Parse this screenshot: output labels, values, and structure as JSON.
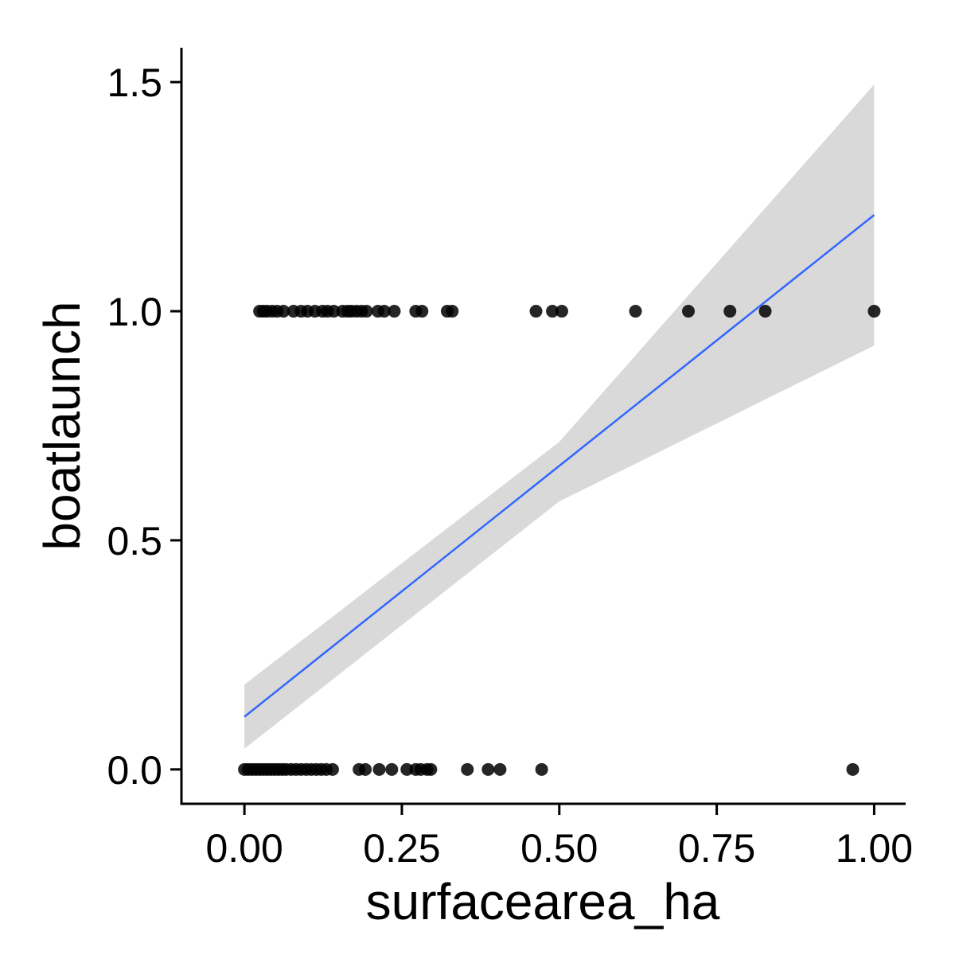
{
  "chart_data": {
    "type": "scatter",
    "title": "",
    "xlabel": "surfacearea_ha",
    "ylabel": "boatlaunch",
    "xlim": [
      -0.1,
      1.05
    ],
    "ylim": [
      -0.075,
      1.575
    ],
    "x_ticks": [
      0.0,
      0.25,
      0.5,
      0.75,
      1.0
    ],
    "x_tick_labels": [
      "0.00",
      "0.25",
      "0.50",
      "0.75",
      "1.00"
    ],
    "y_ticks": [
      0.0,
      0.5,
      1.0,
      1.5
    ],
    "y_tick_labels": [
      "0.0",
      "0.5",
      "1.0",
      "1.5"
    ],
    "grid": false,
    "legend": "none",
    "series": [
      {
        "points_y1_x": [
          0.024,
          0.03,
          0.036,
          0.044,
          0.052,
          0.062,
          0.078,
          0.09,
          0.1,
          0.112,
          0.124,
          0.132,
          0.142,
          0.156,
          0.164,
          0.17,
          0.178,
          0.186,
          0.194,
          0.212,
          0.222,
          0.238,
          0.272,
          0.282,
          0.322,
          0.33,
          0.463,
          0.489,
          0.504,
          0.621,
          0.705,
          0.771,
          0.827,
          1.0
        ],
        "points_y0_x": [
          0.0,
          0.006,
          0.012,
          0.018,
          0.024,
          0.03,
          0.036,
          0.042,
          0.048,
          0.054,
          0.06,
          0.066,
          0.074,
          0.082,
          0.09,
          0.098,
          0.106,
          0.114,
          0.122,
          0.13,
          0.14,
          0.182,
          0.192,
          0.214,
          0.234,
          0.258,
          0.272,
          0.28,
          0.29,
          0.296,
          0.354,
          0.387,
          0.406,
          0.472,
          0.966
        ]
      }
    ],
    "fit": {
      "x": [
        0.0,
        1.0
      ],
      "y": [
        0.115,
        1.21
      ],
      "ci_lower": [
        0.045,
        0.925
      ],
      "ci_upper": [
        0.185,
        1.495
      ],
      "ci_mid_x": 0.5,
      "ci_mid_lower": 0.585,
      "ci_mid_upper": 0.715
    },
    "colors": {
      "points": "#000000",
      "line": "#3366ff",
      "ribbon": "#d9d9d9",
      "axis": "#000000"
    }
  }
}
